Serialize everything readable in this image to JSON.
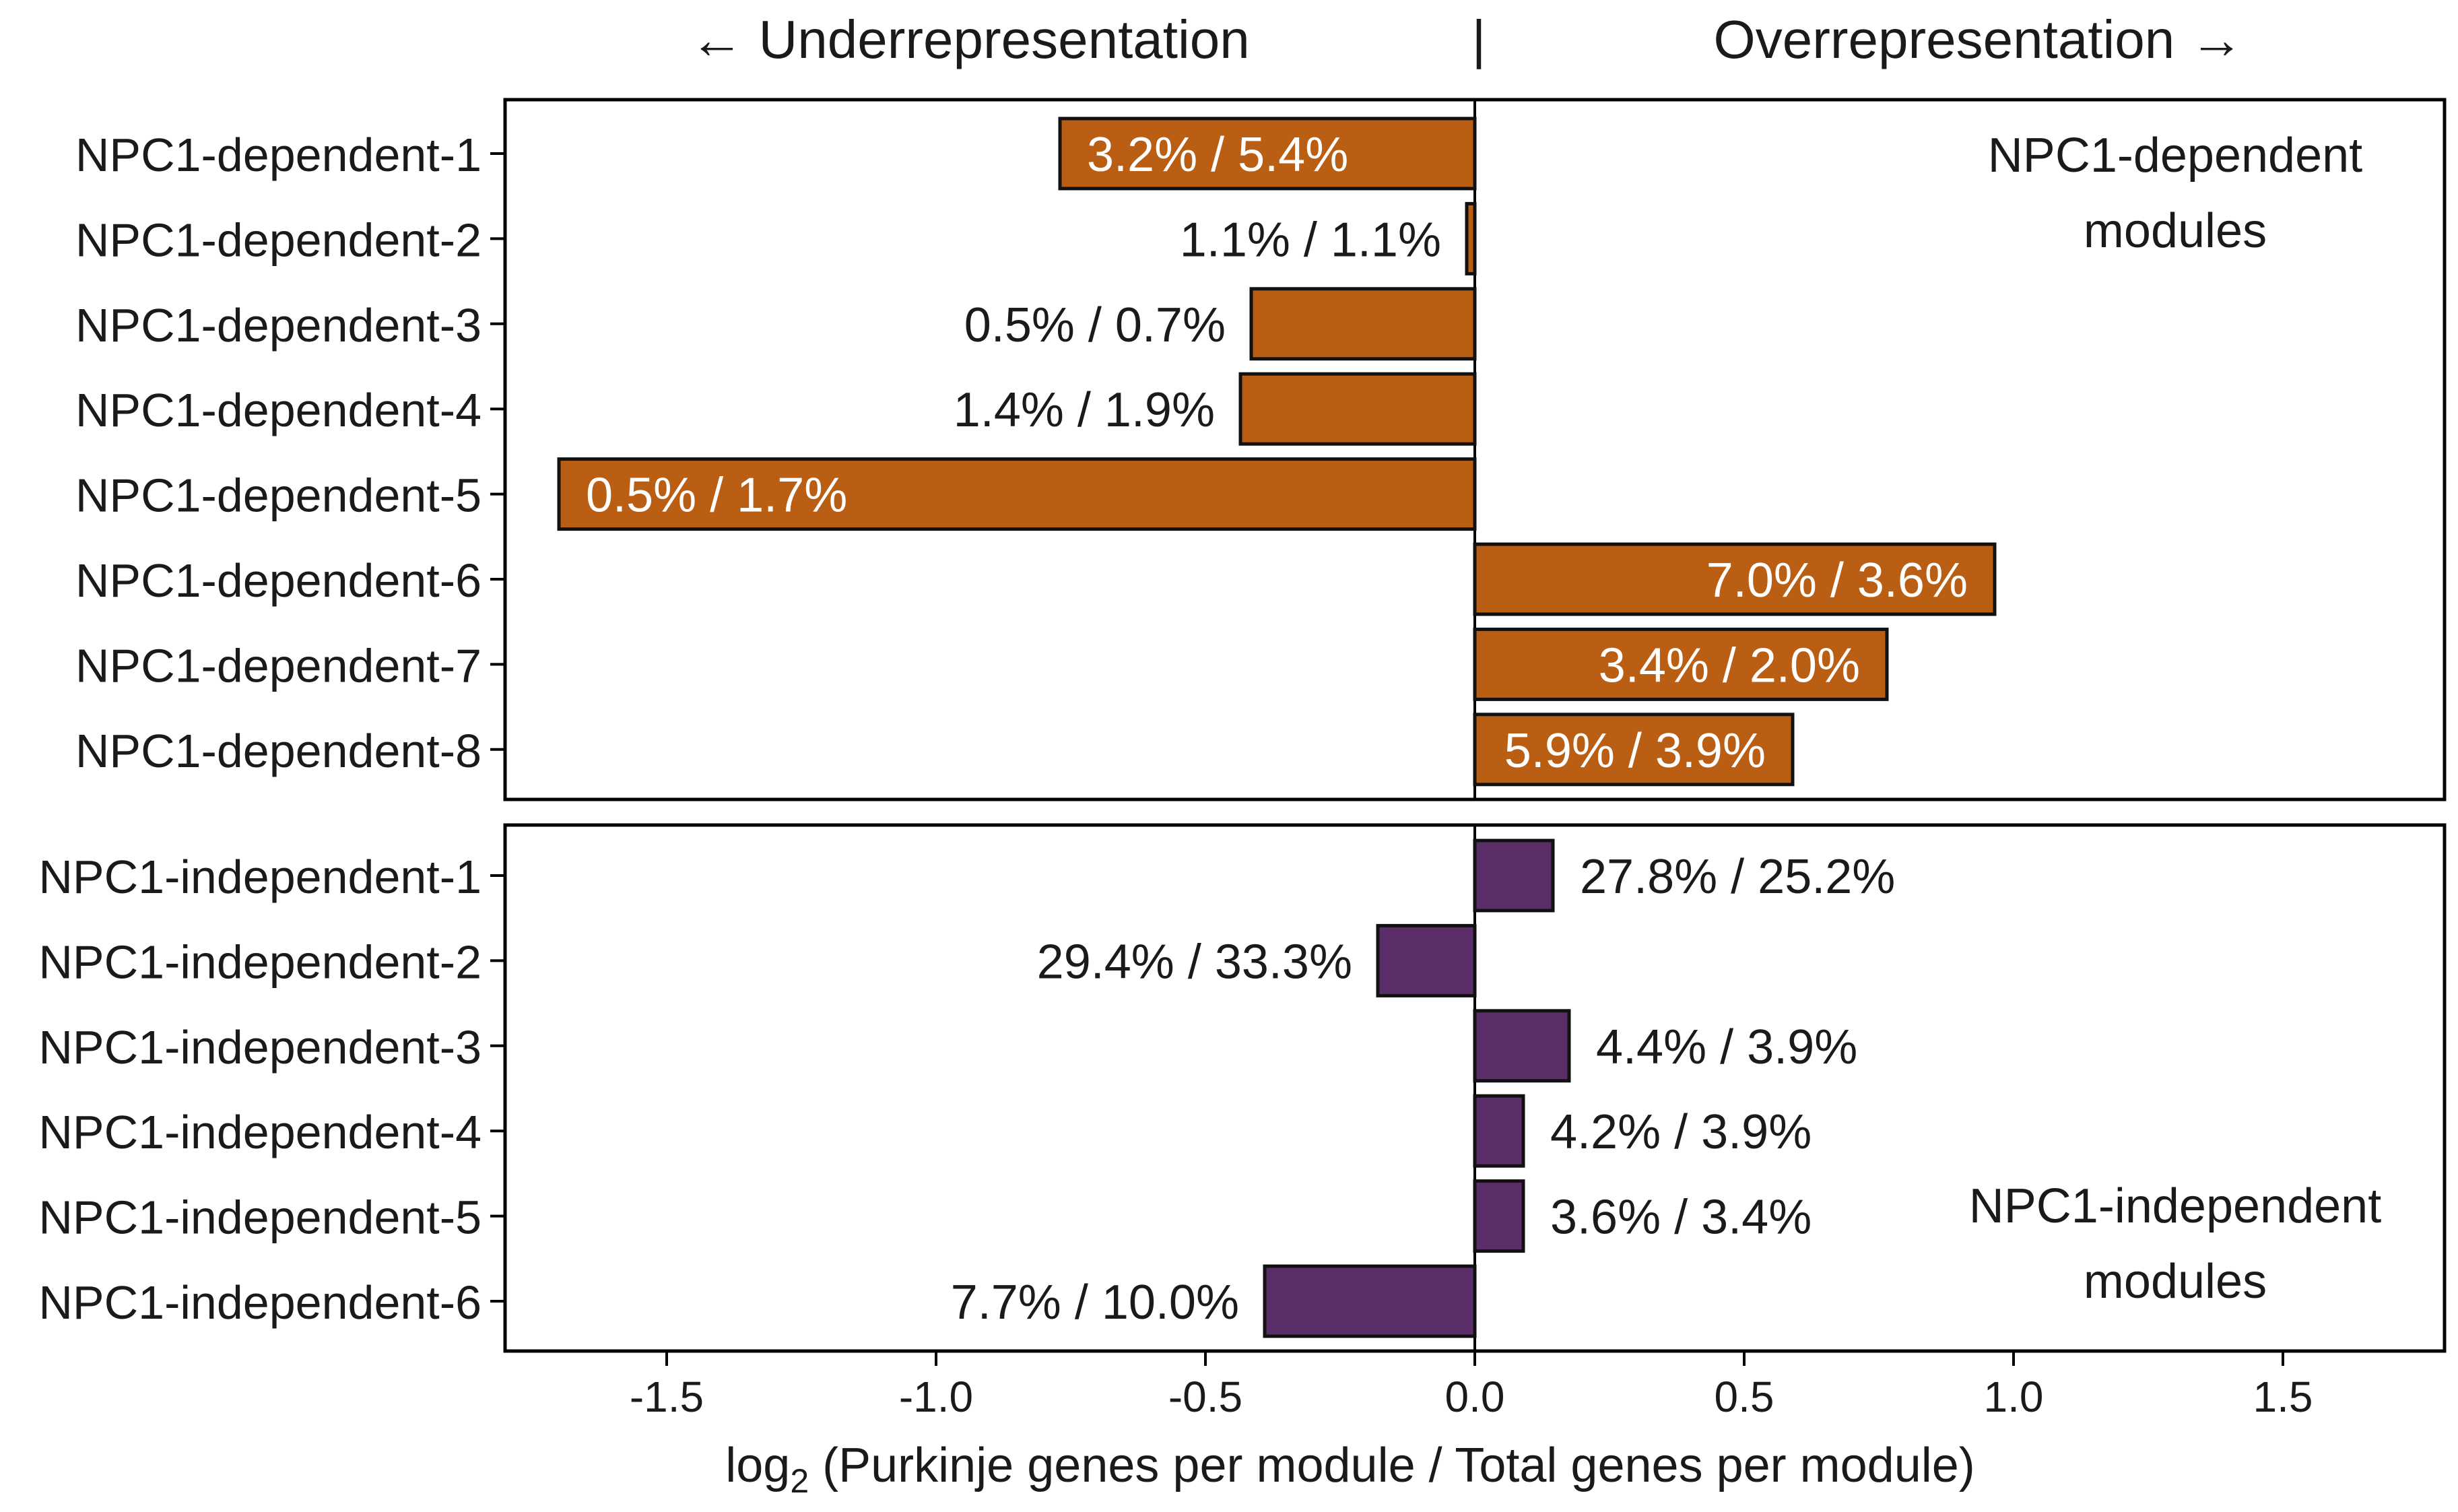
{
  "chart_data": {
    "type": "bar",
    "orientation": "horizontal",
    "header_left": "← Underrepresentation",
    "header_divider": "|",
    "header_right": "Overrepresentation →",
    "xlabel": {
      "prefix": "log",
      "subscript": "2",
      "suffix": " (Purkinje genes per module / Total genes per module)"
    },
    "xlim": [
      -1.8,
      1.8
    ],
    "xticks": [
      -1.5,
      -1.0,
      -0.5,
      0.0,
      0.5,
      1.0,
      1.5
    ],
    "xtick_labels": [
      "-1.5",
      "-1.0",
      "-0.5",
      "0.0",
      "0.5",
      "1.0",
      "1.5"
    ],
    "colors": {
      "dependent": "#BA5E14",
      "independent": "#5C2E69"
    },
    "panels": [
      {
        "id": "dependent",
        "annotation_lines": [
          "NPC1-dependent",
          "modules"
        ],
        "annotation_position": "top-right",
        "categories": [
          "NPC1-dependent-1",
          "NPC1-dependent-2",
          "NPC1-dependent-3",
          "NPC1-dependent-4",
          "NPC1-dependent-5",
          "NPC1-dependent-6",
          "NPC1-dependent-7",
          "NPC1-dependent-8"
        ],
        "values": [
          -0.77,
          -0.015,
          -0.415,
          -0.435,
          -1.7,
          0.965,
          0.765,
          0.59
        ],
        "data_labels": [
          "3.2% / 5.4%",
          "1.1% / 1.1%",
          "0.5% / 0.7%",
          "1.4% / 1.9%",
          "0.5% / 1.7%",
          "7.0% / 3.6%",
          "3.4% / 2.0%",
          "5.9% / 3.9%"
        ],
        "label_inside": [
          true,
          false,
          false,
          false,
          true,
          true,
          true,
          true
        ]
      },
      {
        "id": "independent",
        "annotation_lines": [
          "NPC1-independent",
          "modules"
        ],
        "annotation_position": "bottom-right",
        "categories": [
          "NPC1-independent-1",
          "NPC1-independent-2",
          "NPC1-independent-3",
          "NPC1-independent-4",
          "NPC1-independent-5",
          "NPC1-independent-6"
        ],
        "values": [
          0.145,
          -0.18,
          0.175,
          0.09,
          0.09,
          -0.39
        ],
        "data_labels": [
          "27.8% / 25.2%",
          "29.4% / 33.3%",
          "4.4% / 3.9%",
          "4.2% / 3.9%",
          "3.6% / 3.4%",
          "7.7% / 10.0%"
        ],
        "label_inside": [
          false,
          false,
          false,
          false,
          false,
          false
        ]
      }
    ]
  }
}
